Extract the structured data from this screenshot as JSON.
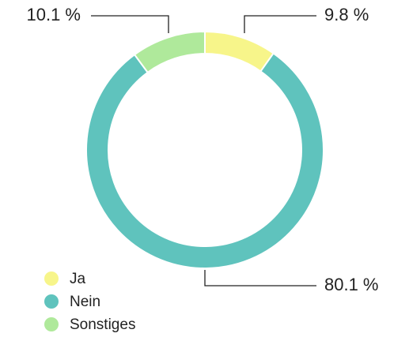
{
  "chart_data": {
    "type": "donut",
    "categories": [
      "Ja",
      "Nein",
      "Sonstiges"
    ],
    "values": [
      9.8,
      80.1,
      10.1
    ],
    "value_labels": [
      "9.8 %",
      "80.1 %",
      "10.1 %"
    ],
    "colors": [
      "#f7f58a",
      "#5fc3bd",
      "#afe99b"
    ],
    "legend": "bottom-left"
  }
}
